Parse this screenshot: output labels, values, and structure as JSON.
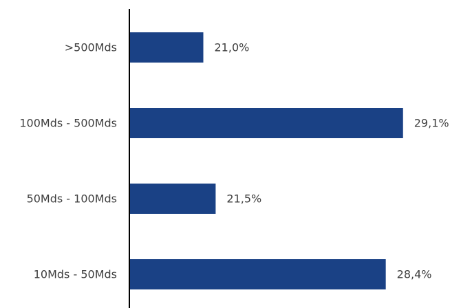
{
  "chart_data": {
    "type": "bar",
    "orientation": "horizontal",
    "categories": [
      ">500Mds",
      "100Mds - 500Mds",
      "50Mds - 100Mds",
      "10Mds - 50Mds"
    ],
    "values": [
      21.0,
      29.1,
      21.5,
      28.4
    ],
    "value_labels": [
      "21,0%",
      "29,1%",
      "21,5%",
      "28,4%"
    ],
    "title": "",
    "xlabel": "",
    "ylabel": "",
    "xlim": [
      18,
      30
    ],
    "grid": false,
    "legend": "none",
    "bar_color": "#1a4185",
    "axis_color": "#000000",
    "text_color": "#3f3f3f"
  }
}
